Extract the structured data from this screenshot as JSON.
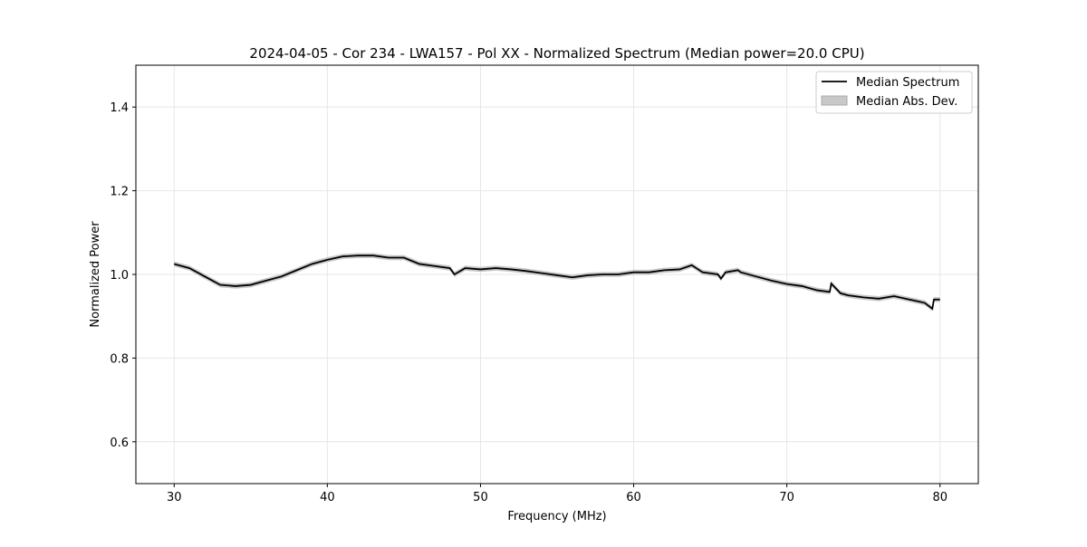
{
  "chart_data": {
    "type": "line",
    "title": "2024-04-05 - Cor 234 - LWA157 - Pol XX - Normalized Spectrum (Median power=20.0 CPU)",
    "xlabel": "Frequency (MHz)",
    "ylabel": "Normalized Power",
    "xlim": [
      27.5,
      82.5
    ],
    "ylim": [
      0.5,
      1.5
    ],
    "xticks": [
      30,
      40,
      50,
      60,
      70,
      80
    ],
    "yticks": [
      0.6,
      0.8,
      1.0,
      1.2,
      1.4
    ],
    "xtick_labels": [
      "30",
      "40",
      "50",
      "60",
      "70",
      "80"
    ],
    "ytick_labels": [
      "0.6",
      "0.8",
      "1.0",
      "1.2",
      "1.4"
    ],
    "grid": true,
    "legend_position": "top-right",
    "legend": [
      "Median Spectrum",
      "Median Abs. Dev."
    ],
    "colors": {
      "line": "#000000",
      "band": "#c8c8c8",
      "grid": "#e6e6e6"
    },
    "series": [
      {
        "name": "Median Spectrum",
        "x": [
          30,
          31,
          32,
          33,
          34,
          35,
          36,
          37,
          38,
          39,
          40,
          41,
          42,
          43,
          44,
          45,
          46,
          47,
          48,
          48.3,
          49,
          50,
          51,
          52,
          53,
          54,
          55,
          56,
          57,
          58,
          59,
          60,
          61,
          62,
          63,
          63.8,
          64.5,
          65.5,
          65.7,
          66,
          66.8,
          67,
          68,
          69,
          70,
          71,
          72,
          72.8,
          72.9,
          73.5,
          74,
          75,
          76,
          77,
          78,
          79,
          79.5,
          79.6,
          80
        ],
        "y": [
          1.025,
          1.015,
          0.995,
          0.975,
          0.972,
          0.975,
          0.985,
          0.995,
          1.01,
          1.025,
          1.035,
          1.043,
          1.045,
          1.045,
          1.04,
          1.04,
          1.025,
          1.02,
          1.015,
          1.0,
          1.015,
          1.012,
          1.015,
          1.012,
          1.008,
          1.003,
          0.998,
          0.993,
          0.998,
          1.0,
          1.0,
          1.005,
          1.005,
          1.01,
          1.012,
          1.022,
          1.005,
          1.0,
          0.99,
          1.005,
          1.01,
          1.005,
          0.995,
          0.985,
          0.977,
          0.972,
          0.962,
          0.958,
          0.978,
          0.955,
          0.95,
          0.945,
          0.942,
          0.948,
          0.94,
          0.932,
          0.918,
          0.94,
          0.94
        ]
      },
      {
        "name": "Median Abs. Dev.",
        "half_width": 0.006
      }
    ]
  }
}
